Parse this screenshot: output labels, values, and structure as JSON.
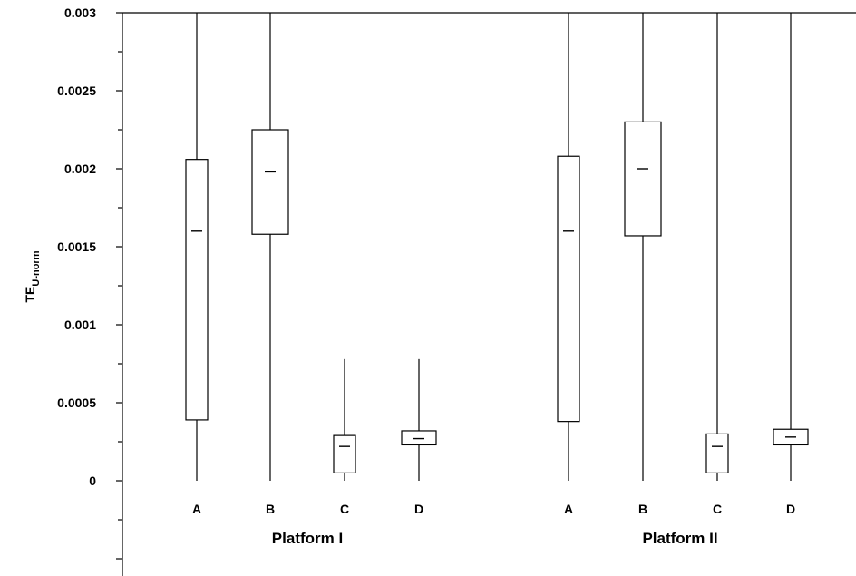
{
  "chart_data": {
    "type": "box",
    "ylabel": {
      "main": "TE",
      "subscript": "U-norm"
    },
    "ylim": [
      -0.00075,
      0.003
    ],
    "yticks": [
      "0.003",
      "0.0025",
      "0.002",
      "0.0015",
      "0.001",
      "0.0005",
      "0"
    ],
    "ytick_values": [
      0.003,
      0.0025,
      0.002,
      0.0015,
      0.001,
      0.0005,
      0
    ],
    "grid": false,
    "groups": [
      {
        "name": "Platform I",
        "boxes": [
          {
            "category": "A",
            "whisker_low": 0.0,
            "q1": 0.00039,
            "median": 0.0016,
            "q3": 0.00206,
            "whisker_high": 0.003
          },
          {
            "category": "B",
            "whisker_low": 0.0,
            "q1": 0.00158,
            "median": 0.00198,
            "q3": 0.00225,
            "whisker_high": 0.003
          },
          {
            "category": "C",
            "whisker_low": 0.0,
            "q1": 5e-05,
            "median": 0.00022,
            "q3": 0.00029,
            "whisker_high": 0.00078
          },
          {
            "category": "D",
            "whisker_low": 0.0,
            "q1": 0.00023,
            "median": 0.00027,
            "q3": 0.00032,
            "whisker_high": 0.00078
          }
        ]
      },
      {
        "name": "Platform II",
        "boxes": [
          {
            "category": "A",
            "whisker_low": 0.0,
            "q1": 0.00038,
            "median": 0.0016,
            "q3": 0.00208,
            "whisker_high": 0.003
          },
          {
            "category": "B",
            "whisker_low": 0.0,
            "q1": 0.00157,
            "median": 0.002,
            "q3": 0.0023,
            "whisker_high": 0.003
          },
          {
            "category": "C",
            "whisker_low": 0.0,
            "q1": 5e-05,
            "median": 0.00022,
            "q3": 0.0003,
            "whisker_high": 0.003
          },
          {
            "category": "D",
            "whisker_low": 0.0,
            "q1": 0.00023,
            "median": 0.00028,
            "q3": 0.00033,
            "whisker_high": 0.003
          }
        ]
      }
    ]
  }
}
